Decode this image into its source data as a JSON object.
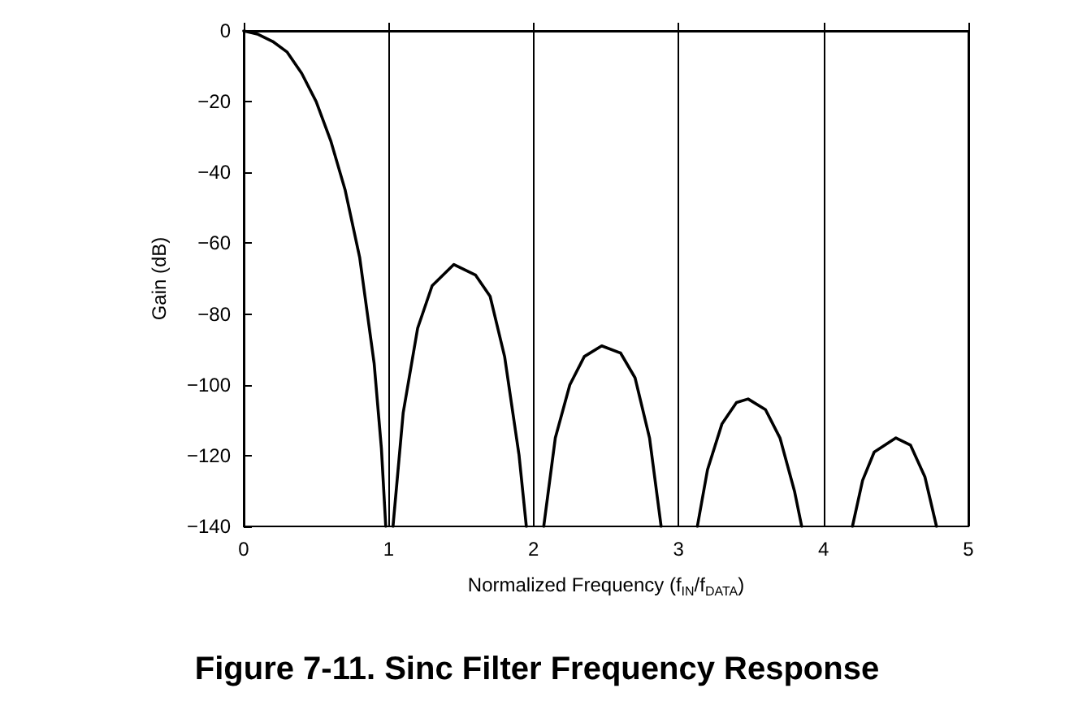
{
  "chart_data": {
    "type": "line",
    "title": "Figure 7-11. Sinc Filter Frequency Response",
    "xlabel": "Normalized Frequency (f$_{IN}$/f$_{DATA}$)",
    "ylabel": "Gain (dB)",
    "xlim": [
      0,
      5
    ],
    "xticks": [
      0,
      1,
      2,
      3,
      4,
      5
    ],
    "ylim": [
      -140,
      0
    ],
    "yticks": [
      -140,
      -120,
      -100,
      -80,
      -60,
      -40,
      -20,
      0
    ],
    "grid": "x",
    "marker": "none",
    "line_style": "solid",
    "series": [
      {
        "color": "#000000",
        "x": [
          0,
          0.1,
          0.2,
          0.3,
          0.4,
          0.5,
          0.6,
          0.7,
          0.8,
          0.9,
          0.95,
          0.98,
          1.0,
          1.03,
          1.1,
          1.2,
          1.3,
          1.45,
          1.6,
          1.7,
          1.8,
          1.9,
          1.95,
          2.0,
          2.07,
          2.15,
          2.25,
          2.35,
          2.47,
          2.6,
          2.7,
          2.8,
          2.88,
          3.0,
          3.13,
          3.2,
          3.3,
          3.4,
          3.48,
          3.6,
          3.7,
          3.8,
          3.85,
          4.0,
          4.2,
          4.27,
          4.35,
          4.5,
          4.6,
          4.7,
          4.78
        ],
        "values": [
          0,
          -1,
          -3,
          -6,
          -12,
          -20,
          -31,
          -45,
          -64,
          -94,
          -118,
          -140,
          null,
          -140,
          -108,
          -84,
          -72,
          -66,
          -69,
          -75,
          -92,
          -120,
          -140,
          null,
          -140,
          -115,
          -100,
          -92,
          -89,
          -91,
          -98,
          -115,
          -140,
          null,
          -140,
          -124,
          -111,
          -105,
          -104,
          -107,
          -115,
          -130,
          -140,
          null,
          -140,
          -127,
          -119,
          -115,
          -117,
          -126,
          -140
        ]
      }
    ]
  }
}
